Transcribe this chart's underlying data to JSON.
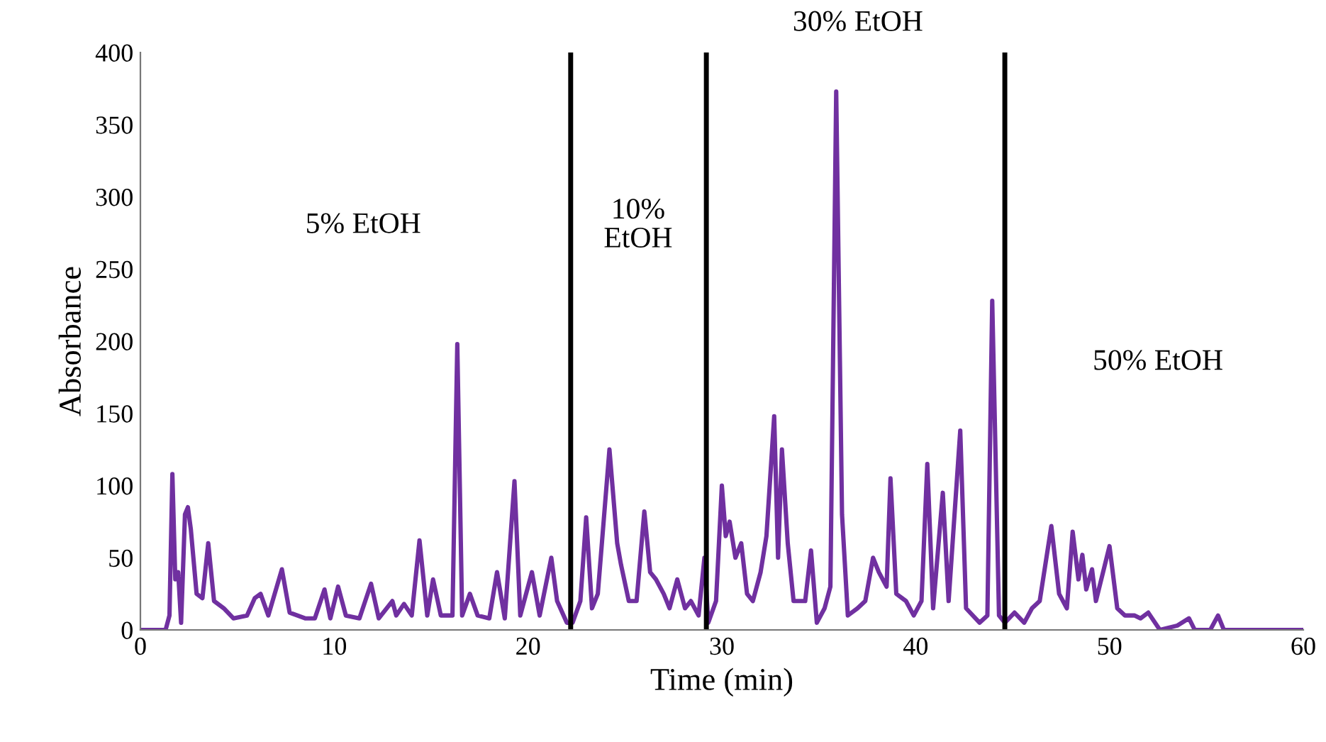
{
  "chart_data": {
    "type": "line",
    "xlabel": "Time (min)",
    "ylabel": "Absorbance",
    "xlim": [
      0,
      60
    ],
    "xticks": [
      0,
      10,
      20,
      30,
      40,
      50,
      60
    ],
    "ylim": [
      0,
      400
    ],
    "yticks": [
      0,
      50,
      100,
      150,
      200,
      250,
      300,
      350,
      400
    ],
    "grid": false,
    "legend": false,
    "marker": "none",
    "line_style": "solid",
    "series": [
      {
        "color": "#7030a0",
        "x": [
          0,
          1.3,
          1.5,
          1.65,
          1.8,
          1.95,
          2.1,
          2.3,
          2.45,
          2.6,
          2.9,
          3.2,
          3.5,
          3.8,
          4.3,
          4.8,
          5.5,
          5.9,
          6.2,
          6.6,
          7.3,
          7.7,
          8.5,
          9.0,
          9.5,
          9.8,
          10.2,
          10.6,
          11.3,
          11.9,
          12.3,
          13.0,
          13.2,
          13.6,
          14.0,
          14.4,
          14.8,
          15.1,
          15.5,
          16.1,
          16.35,
          16.6,
          17.0,
          17.4,
          18.0,
          18.4,
          18.8,
          19.3,
          19.6,
          20.2,
          20.6,
          21.2,
          21.5,
          22.0,
          22.3,
          22.7,
          23.0,
          23.3,
          23.6,
          24.2,
          24.6,
          24.8,
          25.2,
          25.6,
          26.0,
          26.3,
          26.6,
          27.0,
          27.3,
          27.7,
          28.1,
          28.4,
          28.8,
          29.1,
          29.3,
          29.7,
          30.0,
          30.2,
          30.4,
          30.7,
          31.0,
          31.3,
          31.6,
          32.0,
          32.3,
          32.7,
          32.9,
          33.1,
          33.4,
          33.7,
          34.3,
          34.6,
          34.9,
          35.3,
          35.6,
          35.9,
          36.2,
          36.5,
          37.0,
          37.4,
          37.8,
          38.1,
          38.5,
          38.7,
          39.0,
          39.5,
          39.9,
          40.3,
          40.6,
          40.9,
          41.4,
          41.7,
          42.3,
          42.6,
          43.3,
          43.7,
          43.95,
          44.3,
          44.6,
          45.1,
          45.6,
          46.0,
          46.4,
          47.0,
          47.4,
          47.8,
          48.1,
          48.4,
          48.6,
          48.8,
          49.1,
          49.3,
          50.0,
          50.4,
          50.8,
          51.3,
          51.6,
          52.0,
          52.6,
          53.5,
          54.1,
          54.4,
          55.2,
          55.6,
          55.9,
          60
        ],
        "values": [
          0,
          0,
          10,
          108,
          35,
          40,
          5,
          80,
          85,
          70,
          25,
          22,
          60,
          20,
          15,
          8,
          10,
          22,
          25,
          10,
          42,
          12,
          8,
          8,
          28,
          8,
          30,
          10,
          8,
          32,
          8,
          20,
          10,
          18,
          10,
          62,
          10,
          35,
          10,
          10,
          198,
          10,
          25,
          10,
          8,
          40,
          8,
          103,
          10,
          40,
          10,
          50,
          20,
          5,
          5,
          20,
          78,
          15,
          25,
          125,
          60,
          45,
          20,
          20,
          82,
          40,
          35,
          25,
          15,
          35,
          15,
          20,
          10,
          50,
          5,
          20,
          100,
          65,
          75,
          50,
          60,
          25,
          20,
          40,
          65,
          148,
          50,
          125,
          60,
          20,
          20,
          55,
          5,
          15,
          30,
          373,
          80,
          10,
          15,
          20,
          50,
          40,
          30,
          105,
          25,
          20,
          10,
          20,
          115,
          15,
          95,
          20,
          138,
          15,
          5,
          10,
          228,
          10,
          5,
          12,
          5,
          15,
          20,
          72,
          25,
          15,
          68,
          35,
          52,
          28,
          42,
          20,
          58,
          15,
          10,
          10,
          8,
          12,
          0,
          3,
          8,
          0,
          0,
          10,
          0,
          0
        ]
      }
    ],
    "ref_lines": [
      {
        "axis": "x",
        "value": 22.2,
        "color": "#000000",
        "line_style": "solid"
      },
      {
        "axis": "x",
        "value": 29.2,
        "color": "#000000",
        "line_style": "solid"
      },
      {
        "axis": "x",
        "value": 44.6,
        "color": "#000000",
        "line_style": "solid"
      }
    ],
    "annotations": [
      "5% EtOH",
      "10%\nEtOH",
      "30% EtOH",
      "50% EtOH"
    ]
  }
}
